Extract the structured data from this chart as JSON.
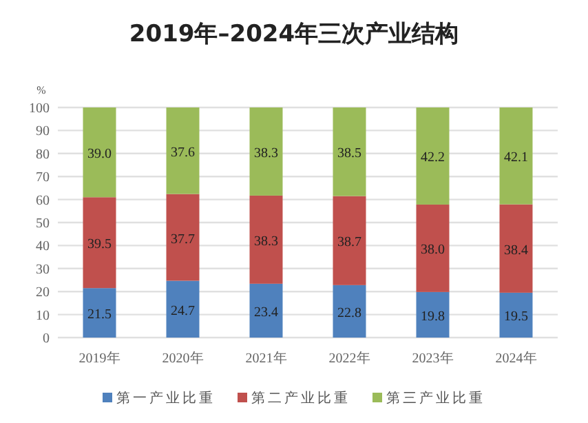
{
  "chart_data": {
    "type": "bar",
    "title": "2019年–2024年三次产业结构",
    "ylabel": "%",
    "categories": [
      "2019年",
      "2020年",
      "2021年",
      "2022年",
      "2023年",
      "2024年"
    ],
    "stacked": true,
    "ylim": [
      0,
      100
    ],
    "yticks": [
      0,
      10,
      20,
      30,
      40,
      50,
      60,
      70,
      80,
      90,
      100
    ],
    "grid": "y",
    "legend": "bottom",
    "series": [
      {
        "name": "第一产业比重",
        "color": "#4f81bd",
        "values": [
          21.5,
          24.7,
          23.4,
          22.8,
          19.8,
          19.5
        ],
        "value_labels": [
          "21.5",
          "24.7",
          "23.4",
          "22.8",
          "19.8",
          "19.5"
        ]
      },
      {
        "name": "第二产业比重",
        "color": "#c0504d",
        "values": [
          39.5,
          37.7,
          38.3,
          38.7,
          38.0,
          38.4
        ],
        "value_labels": [
          "39.5",
          "37.7",
          "38.3",
          "38.7",
          "38.0",
          "38.4"
        ]
      },
      {
        "name": "第三产业比重",
        "color": "#9bbb59",
        "values": [
          39.0,
          37.6,
          38.3,
          38.5,
          42.2,
          42.1
        ],
        "value_labels": [
          "39.0",
          "37.6",
          "38.3",
          "38.5",
          "42.2",
          "42.1"
        ]
      }
    ]
  }
}
